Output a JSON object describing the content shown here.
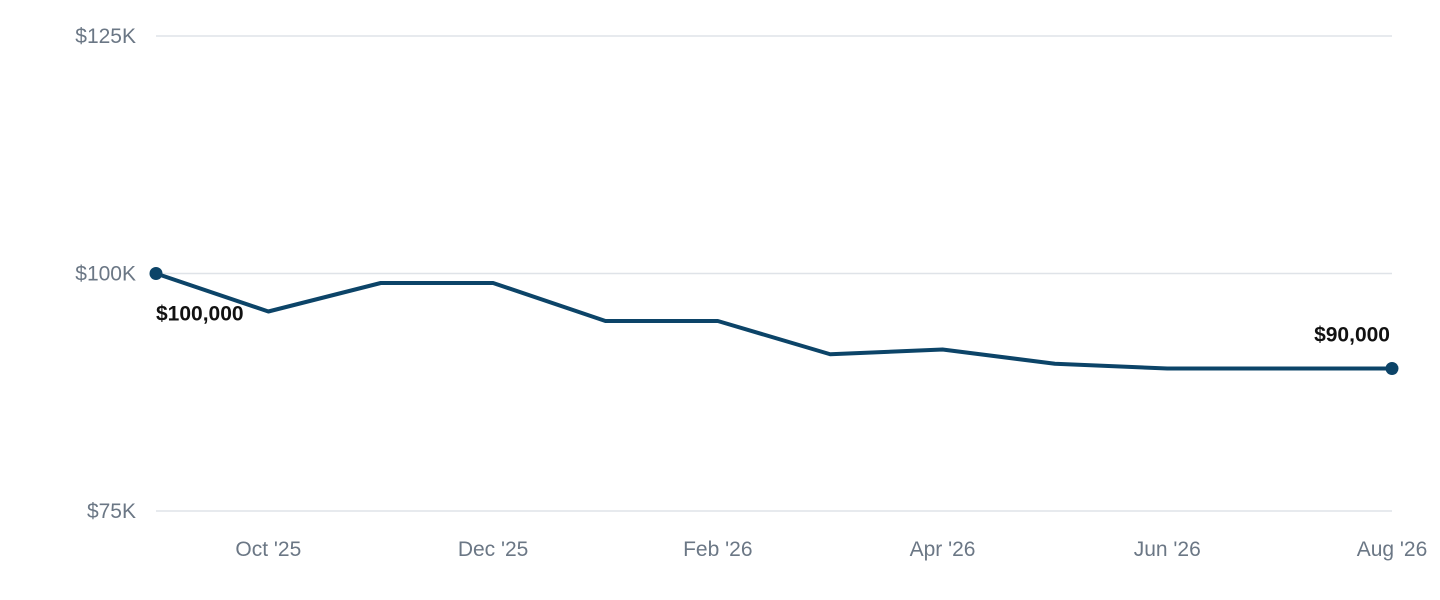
{
  "chart_data": {
    "type": "line",
    "title": "",
    "xlabel": "",
    "ylabel": "",
    "x": [
      "2025-09",
      "2025-10",
      "2025-11",
      "2025-12",
      "2026-01",
      "2026-02",
      "2026-03",
      "2026-04",
      "2026-05",
      "2026-06",
      "2026-07",
      "2026-08"
    ],
    "x_tick_labels": [
      "Oct '25",
      "Dec '25",
      "Feb '26",
      "Apr '26",
      "Jun '26",
      "Aug '26"
    ],
    "x_tick_positions": [
      "2025-10",
      "2025-12",
      "2026-02",
      "2026-04",
      "2026-06",
      "2026-08"
    ],
    "y_ticks": [
      75000,
      100000,
      125000
    ],
    "y_tick_labels": [
      "$75K",
      "$100K",
      "$125K"
    ],
    "ylim": [
      75000,
      125000
    ],
    "grid": true,
    "legend": "none",
    "series": [
      {
        "values": [
          100000,
          96000,
          99000,
          99000,
          95000,
          95000,
          91500,
          92000,
          90500,
          90000,
          90000,
          90000
        ],
        "color": "#0c4468"
      }
    ],
    "annotations": [
      {
        "x": "2025-09",
        "value": 100000,
        "text": "$100,000",
        "position": "below"
      },
      {
        "x": "2026-08",
        "value": 90000,
        "text": "$90,000",
        "position": "above"
      }
    ]
  }
}
